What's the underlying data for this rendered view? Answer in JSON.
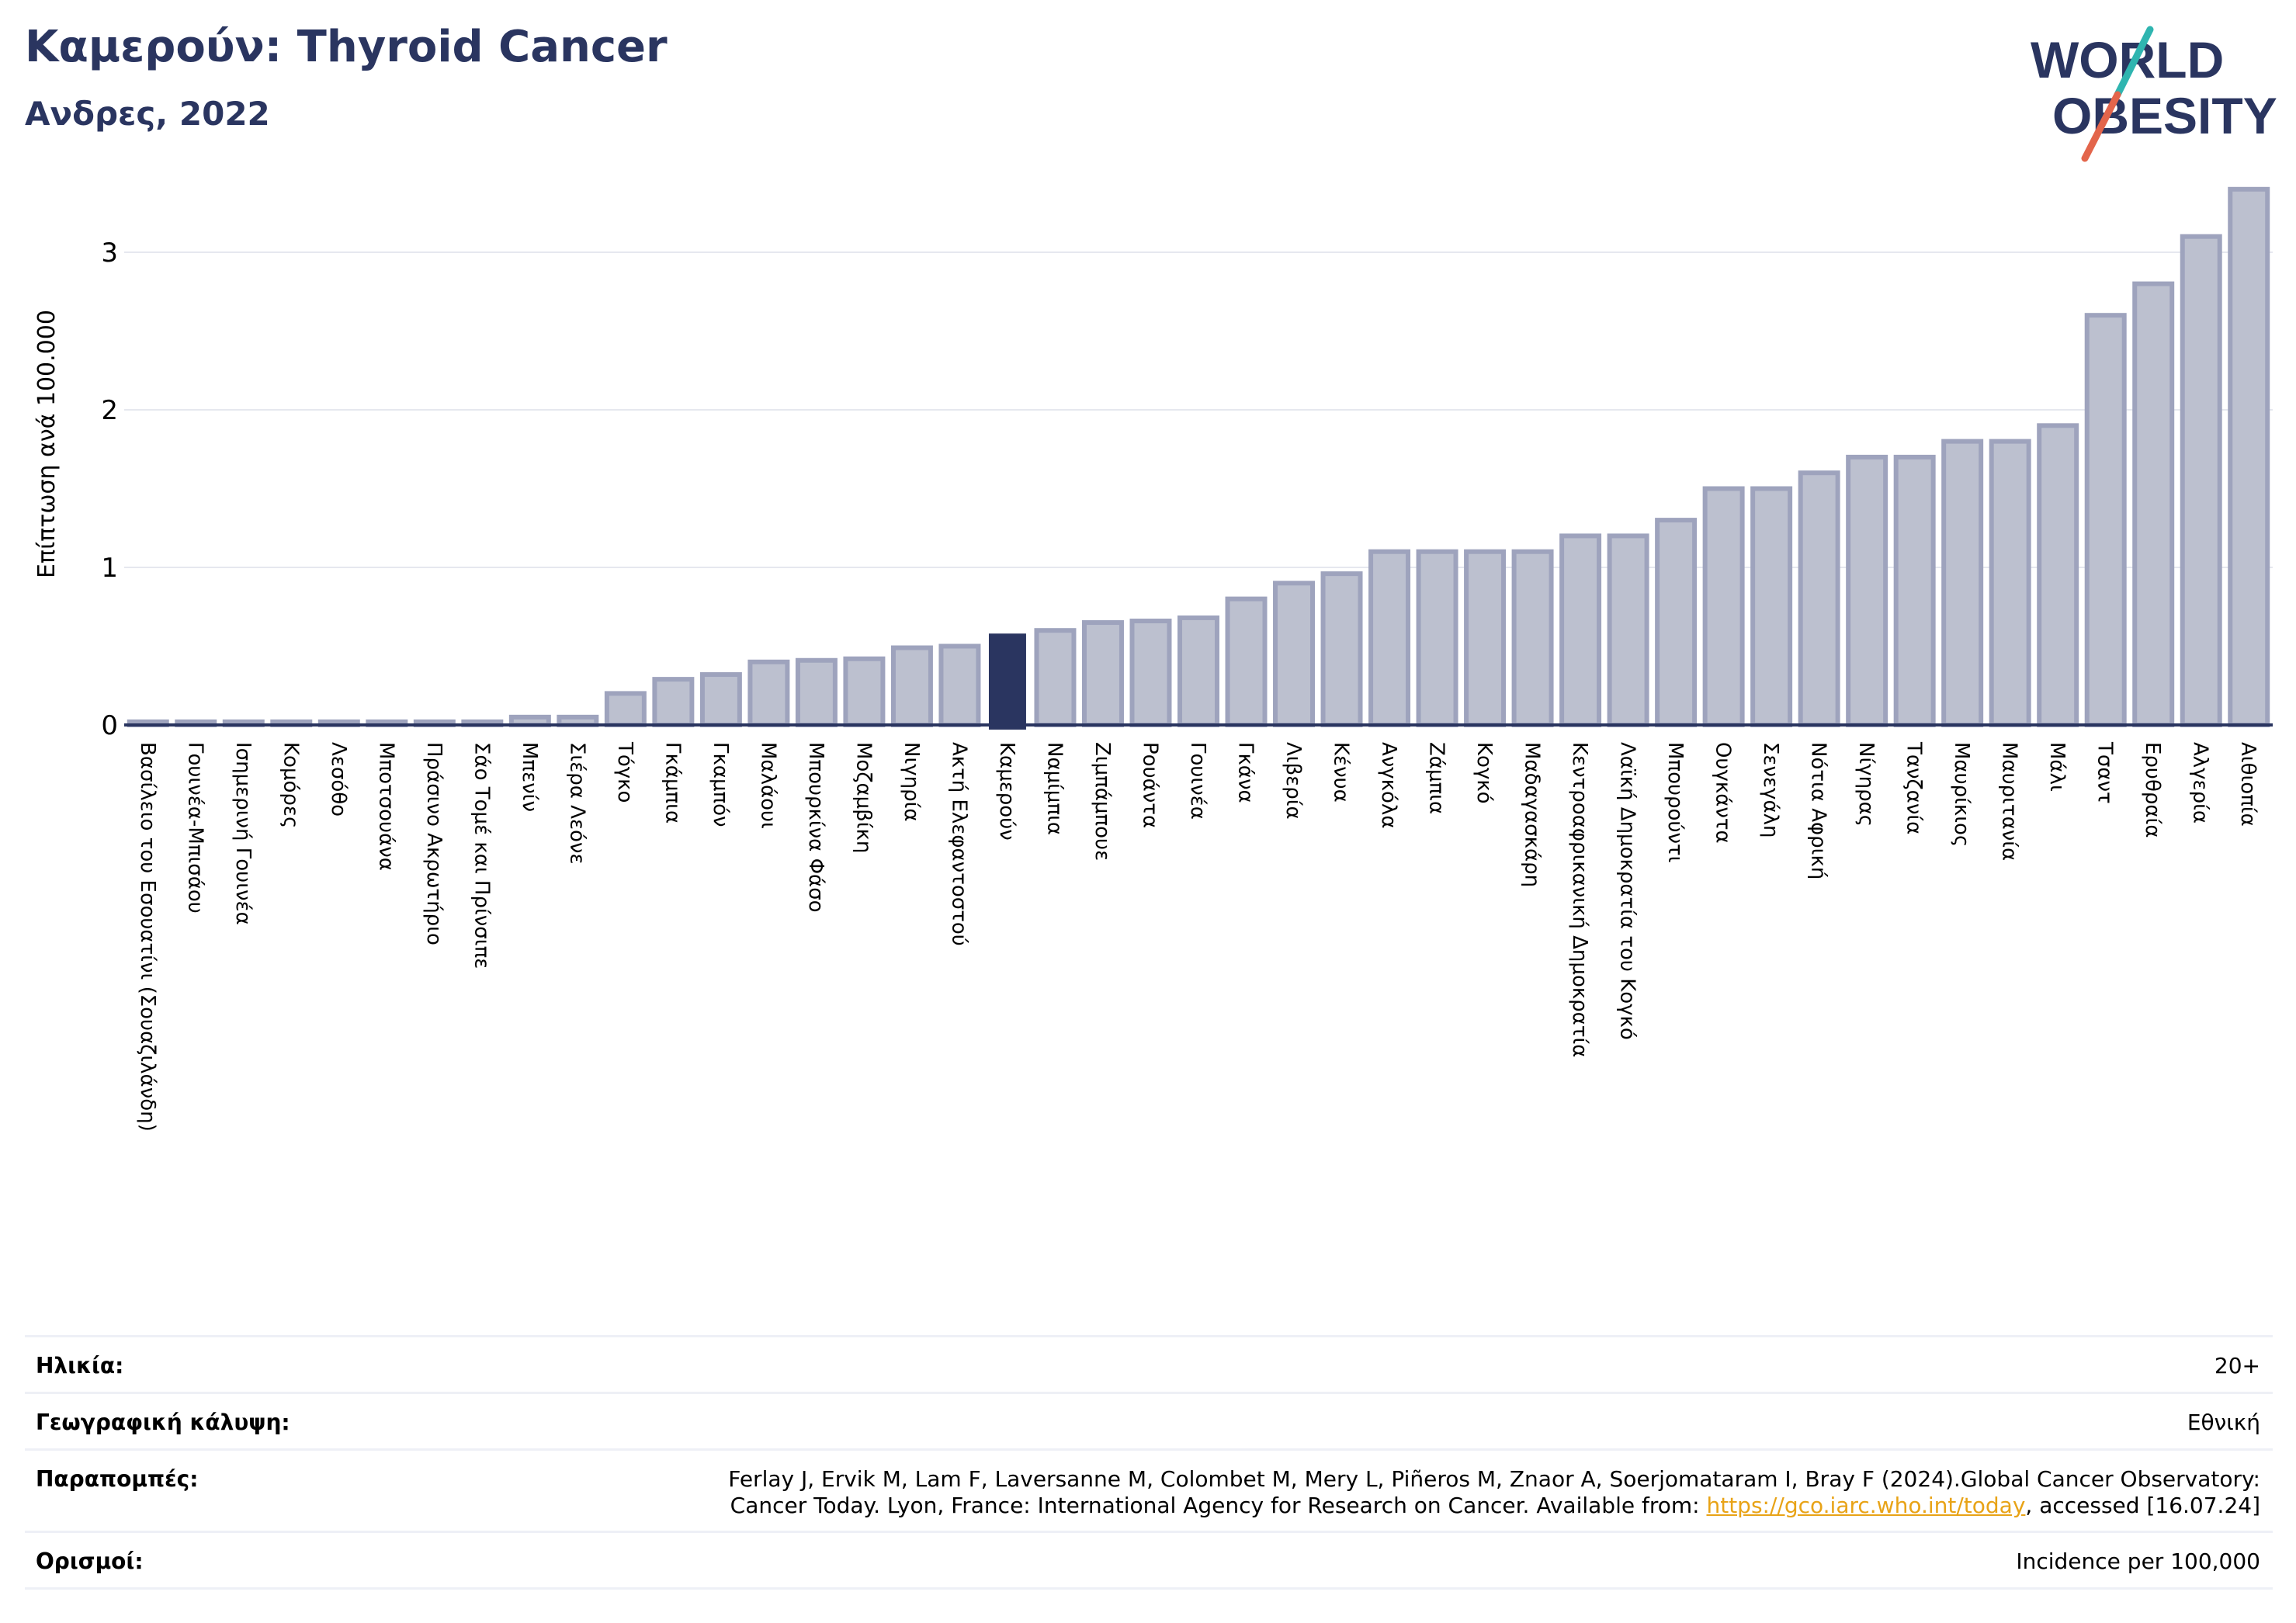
{
  "header": {
    "title": "Καμερούν: Thyroid Cancer",
    "subtitle": "Ανδρες, 2022"
  },
  "logo": {
    "line1": "WORLD",
    "line2": "OBESITY"
  },
  "chart_data": {
    "type": "bar",
    "ylabel": "Επίπτωση ανά 100.000",
    "ylim": [
      0,
      3.4
    ],
    "yticks": [
      0,
      1,
      2,
      3
    ],
    "highlight": "Καμερούν",
    "colors": {
      "bar": "#bcc0cf",
      "bar_edge": "#9ea3bd",
      "highlight": "#2a3560",
      "grid": "#e6e8ef",
      "axis": "#2a3560"
    },
    "categories": [
      "Βασίλειο του Εσουατίνι (Σουαζιλάνδη)",
      "Γουινέα-Μπισάου",
      "Ισημερινή Γουινέα",
      "Κομόρες",
      "Λεσόθο",
      "Μποτσουάνα",
      "Πράσινο Ακρωτήριο",
      "Σάο Τομέ και Πρίνσιπε",
      "Μπενίν",
      "Σιέρα Λεόνε",
      "Τόγκο",
      "Γκάμπια",
      "Γκαμπόν",
      "Μαλάουι",
      "Μπουρκίνα Φάσο",
      "Μοζαμβίκη",
      "Νιγηρία",
      "Ακτή Ελεφαντοστού",
      "Καμερούν",
      "Ναμίμπια",
      "Ζιμπάμπουε",
      "Ρουάντα",
      "Γουινέα",
      "Γκάνα",
      "Λιβερία",
      "Κένυα",
      "Ανγκόλα",
      "Ζάμπια",
      "Κογκό",
      "Μαδαγασκάρη",
      "Κεντροαφρικανική Δημοκρατία",
      "Λαϊκή Δημοκρατία του Κογκό",
      "Μπουρούντι",
      "Ουγκάντα",
      "Σενεγάλη",
      "Νότια Αφρική",
      "Νίγηρας",
      "Τανζανία",
      "Μαυρίκιος",
      "Μαυριτανία",
      "Μάλι",
      "Τσαντ",
      "Ερυθραία",
      "Αλγερία",
      "Αιθιοπία"
    ],
    "values": [
      0.02,
      0.02,
      0.02,
      0.02,
      0.02,
      0.02,
      0.02,
      0.02,
      0.05,
      0.05,
      0.2,
      0.29,
      0.32,
      0.4,
      0.41,
      0.42,
      0.49,
      0.5,
      0.58,
      0.6,
      0.65,
      0.66,
      0.68,
      0.8,
      0.9,
      0.96,
      1.1,
      1.1,
      1.1,
      1.1,
      1.2,
      1.2,
      1.3,
      1.5,
      1.5,
      1.6,
      1.7,
      1.7,
      1.8,
      1.8,
      1.9,
      2.6,
      2.8,
      3.1,
      3.4
    ]
  },
  "meta": {
    "age_label": "Ηλικία:",
    "age_value": "20+",
    "coverage_label": "Γεωγραφική κάλυψη:",
    "coverage_value": "Εθνική",
    "refs_label": "Παραπομπές:",
    "refs_line1": "Ferlay J, Ervik M, Lam F, Laversanne M, Colombet M, Mery L, Piñeros M, Znaor A, Soerjomataram I, Bray F (2024).Global Cancer Observatory:",
    "refs_line2_pre": "Cancer Today. Lyon, France: International Agency for Research on Cancer. Available from: ",
    "refs_link": "https://gco.iarc.who.int/today",
    "refs_line2_post": ", accessed [16.07.24]",
    "defs_label": "Ορισμοί:",
    "defs_value": "Incidence per 100,000"
  }
}
